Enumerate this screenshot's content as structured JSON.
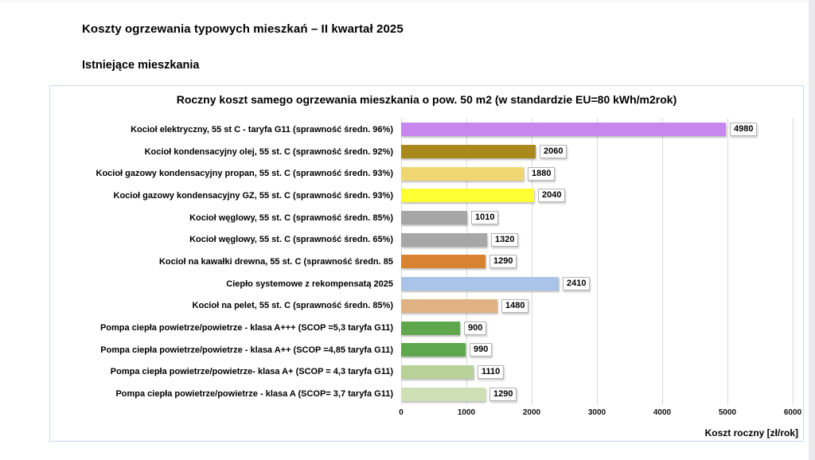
{
  "page": {
    "title": "Koszty ogrzewania typowych mieszkań – II kwartał 2025",
    "subtitle": "Istniejące mieszkania"
  },
  "chart_data": {
    "type": "bar",
    "orientation": "horizontal",
    "title": "Roczny koszt samego ogrzewania mieszkania o pow. 50 m2 (w standardzie  EU=80 kWh/m2rok)",
    "xlabel": "Koszt roczny [zł/rok]",
    "xlim": [
      0,
      6000
    ],
    "xticks": [
      0,
      1000,
      2000,
      3000,
      4000,
      5000,
      6000
    ],
    "grid": true,
    "legend": false,
    "categories": [
      "Kocioł  elektryczny, 55 st C -  taryfa G11 (sprawność średn. 96%)",
      "Kocioł  kondensacyjny olej, 55 st. C (sprawność średn. 92%)",
      "Kocioł gazowy kondensacyjny propan, 55 st. C (sprawność średn. 93%)",
      "Kocioł gazowy kondensacyjny GZ, 55 st. C (sprawność średn. 93%)",
      "Kocioł węglowy,  55 st. C (sprawność średn. 85%)",
      "Kocioł węglowy, 55 st. C (sprawność średn. 65%)",
      "Kocioł na kawałki drewna, 55 st. C (sprawność średn. 85",
      "Ciepło systemowe z rekompensatą 2025",
      "Kocioł na pelet, 55 st. C (sprawność średn. 85%)",
      "Pompa ciepła powietrze/powietrze -  klasa A+++ (SCOP =5,3 taryfa G11)",
      "Pompa ciepła powietrze/powietrze - klasa A++ (SCOP =4,85 taryfa G11)",
      "Pompa ciepła powietrze/powietrze-  klasa A+ (SCOP = 4,3 taryfa G11)",
      "Pompa ciepła powietrze/powietrze - klasa A (SCOP= 3,7 taryfa G11)"
    ],
    "values": [
      4980,
      2060,
      1880,
      2040,
      1010,
      1320,
      1290,
      2410,
      1480,
      900,
      990,
      1110,
      1290
    ],
    "colors": [
      "#c686ee",
      "#a9891b",
      "#f0d671",
      "#ffff36",
      "#a6a6a6",
      "#a6a6a6",
      "#d9822f",
      "#aac3e8",
      "#dfb183",
      "#5fa74d",
      "#5fa74d",
      "#b7d199",
      "#cfe0b6"
    ],
    "gridline_color": "#d9d9d9",
    "border_color": "#c9d9ea"
  }
}
